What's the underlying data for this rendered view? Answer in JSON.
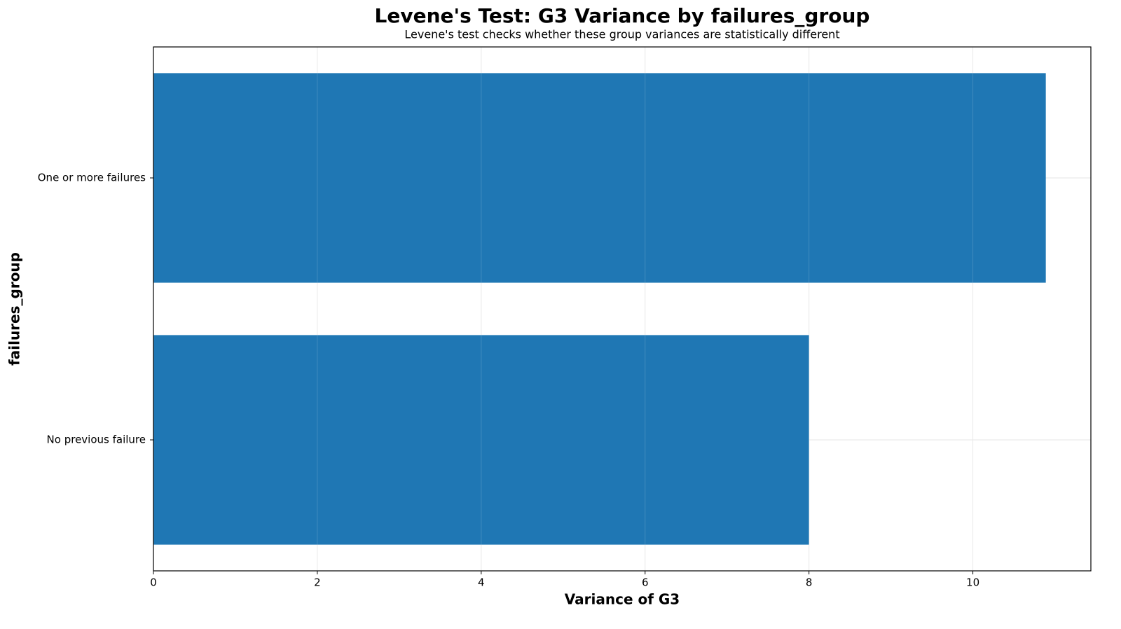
{
  "chart_data": {
    "type": "barh",
    "title": "Levene's Test: G3 Variance by failures_group",
    "subtitle": "Levene's test checks whether these group variances are statistically different",
    "x_label": "Variance of G3",
    "y_label": "failures_group",
    "categories": [
      "No previous failure",
      "One or more failures"
    ],
    "values": [
      8.0,
      10.89
    ],
    "color": "#1f77b4",
    "xlim": [
      0,
      11.44
    ],
    "xticks": [
      0,
      2,
      4,
      6,
      8,
      10
    ],
    "grid": true
  }
}
